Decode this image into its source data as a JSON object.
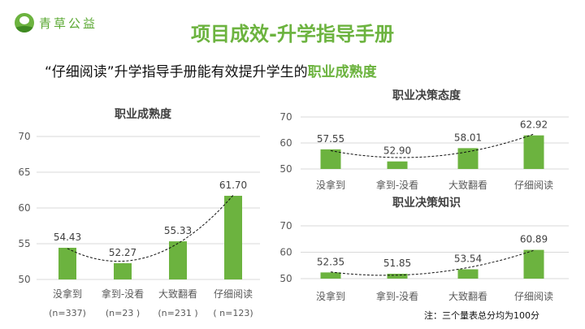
{
  "logo": {
    "text": "青草公益"
  },
  "title": "项目成效-升学指导手册",
  "subtitle": {
    "prefix": "“仔细阅读”升学指导手册能有效提升学生的",
    "highlight": "职业成熟度"
  },
  "note": "注：三个量表总分均为100分",
  "colors": {
    "bar": "#6cb33f",
    "title": "#6cb33f",
    "grid": "#d9d9d9",
    "text": "#595959"
  },
  "chart_data": [
    {
      "type": "bar",
      "title": "职业成熟度",
      "categories": [
        "没拿到",
        "拿到-没看",
        "大致翻看",
        "仔细阅读"
      ],
      "sublabels": [
        "(n=337)",
        "(n=23 )",
        "(n=231 )",
        "( n=123)"
      ],
      "values": [
        54.43,
        52.27,
        55.33,
        61.7
      ],
      "value_labels": [
        "54.43",
        "52.27",
        "55.33",
        "61.70"
      ],
      "ylim": [
        50,
        70
      ],
      "yticks": [
        "50",
        "55",
        "60",
        "65",
        "70"
      ],
      "trendline": "polynomial",
      "grid": true
    },
    {
      "type": "bar",
      "title": "职业决策态度",
      "categories": [
        "没拿到",
        "拿到-没看",
        "大致翻看",
        "仔细阅读"
      ],
      "values": [
        57.55,
        52.9,
        58.01,
        62.92
      ],
      "value_labels": [
        "57.55",
        "52.90",
        "58.01",
        "62.92"
      ],
      "ylim": [
        50,
        70
      ],
      "yticks": [
        "50",
        "60",
        "70"
      ],
      "trendline": "polynomial",
      "grid": true
    },
    {
      "type": "bar",
      "title": "职业决策知识",
      "categories": [
        "没拿到",
        "拿到-没看",
        "大致翻看",
        "仔细阅读"
      ],
      "values": [
        52.35,
        51.85,
        53.54,
        60.89
      ],
      "value_labels": [
        "52.35",
        "51.85",
        "53.54",
        "60.89"
      ],
      "ylim": [
        50,
        70
      ],
      "yticks": [
        "50",
        "60",
        "70"
      ],
      "trendline": "polynomial",
      "grid": true
    }
  ]
}
